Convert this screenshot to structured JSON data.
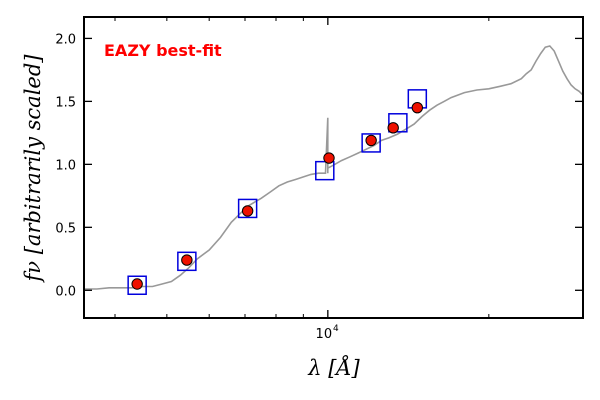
{
  "chart_data": {
    "type": "line",
    "title": "",
    "xlabel": "λ [Å]",
    "ylabel": "fν [arbitrarily scaled]",
    "x_scale": "log",
    "xlim": [
      3500,
      30000
    ],
    "ylim": [
      -0.22,
      2.17
    ],
    "x_tick_labels": [
      {
        "value": 10000,
        "label": "10",
        "exponent": "4"
      }
    ],
    "y_ticks": [
      0.0,
      0.5,
      1.0,
      1.5,
      2.0
    ],
    "y_tick_labels": [
      "0.0",
      "0.5",
      "1.0",
      "1.5",
      "2.0"
    ],
    "grid": false,
    "annotation": {
      "text": "EAZY best-fit",
      "color": "#ff0000"
    },
    "series": [
      {
        "kind": "line",
        "color": "#999999",
        "x": [
          3500,
          3700,
          3900,
          4100,
          4300,
          4500,
          4700,
          4900,
          5100,
          5300,
          5500,
          5700,
          6000,
          6300,
          6600,
          6900,
          7100,
          7300,
          7500,
          7800,
          8100,
          8400,
          8700,
          9000,
          9300,
          9600,
          9900,
          10000,
          10000,
          10000,
          10100,
          10300,
          10600,
          11000,
          11400,
          11800,
          12200,
          12600,
          13000,
          13500,
          14000,
          14500,
          15000,
          15500,
          16000,
          16500,
          17000,
          18000,
          19000,
          20000,
          21000,
          22000,
          23000,
          23500,
          24000,
          24500,
          25000,
          25500,
          26000,
          26500,
          27000,
          27500,
          28000,
          28500,
          29000,
          29500,
          30000
        ],
        "y": [
          0.01,
          0.01,
          0.02,
          0.02,
          0.02,
          0.03,
          0.03,
          0.05,
          0.07,
          0.12,
          0.18,
          0.25,
          0.32,
          0.42,
          0.54,
          0.62,
          0.67,
          0.7,
          0.73,
          0.78,
          0.83,
          0.86,
          0.88,
          0.9,
          0.92,
          0.93,
          0.93,
          1.37,
          0.93,
          0.97,
          0.98,
          1.0,
          1.03,
          1.06,
          1.09,
          1.12,
          1.15,
          1.19,
          1.21,
          1.24,
          1.28,
          1.32,
          1.38,
          1.43,
          1.47,
          1.5,
          1.53,
          1.57,
          1.59,
          1.6,
          1.62,
          1.64,
          1.68,
          1.72,
          1.75,
          1.82,
          1.88,
          1.93,
          1.94,
          1.9,
          1.82,
          1.74,
          1.68,
          1.63,
          1.6,
          1.58,
          1.55
        ]
      },
      {
        "kind": "model-photometry",
        "marker": "open-square",
        "color": "#0000dd",
        "x": [
          4400,
          5450,
          7080,
          9870,
          12050,
          13520,
          14700
        ],
        "y": [
          0.04,
          0.23,
          0.65,
          0.95,
          1.17,
          1.33,
          1.52
        ]
      },
      {
        "kind": "observed-photometry",
        "marker": "filled-circle",
        "color": "#ee1100",
        "x": [
          4400,
          5450,
          7080,
          10050,
          12050,
          13250,
          14700
        ],
        "y": [
          0.05,
          0.24,
          0.63,
          1.05,
          1.19,
          1.29,
          1.45
        ]
      }
    ]
  }
}
